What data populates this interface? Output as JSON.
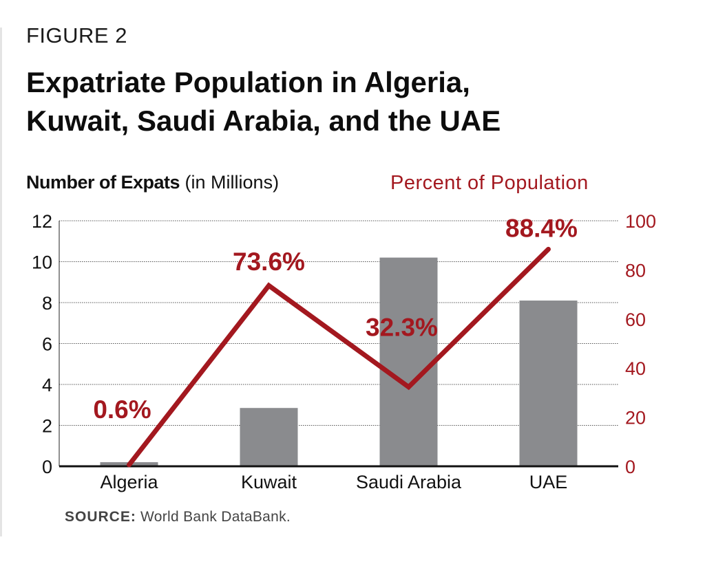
{
  "figure_label": "FIGURE 2",
  "title_line1": "Expatriate Population in Algeria,",
  "title_line2": "Kuwait, Saudi Arabia, and the UAE",
  "left_axis_title_bold": "Number of Expats",
  "left_axis_title_rest": " (in Millions)",
  "right_axis_title": "Percent of Population",
  "source_label": "SOURCE:",
  "source_text": " World Bank DataBank.",
  "colors": {
    "bar": "#8a8b8e",
    "line": "#a3181f",
    "grid": "#555555",
    "text": "#111111"
  },
  "chart_data": {
    "type": "bar",
    "categories": [
      "Algeria",
      "Kuwait",
      "Saudi Arabia",
      "UAE"
    ],
    "series": [
      {
        "type": "bar",
        "axis": "left",
        "values": [
          0.2,
          2.85,
          10.2,
          8.1
        ]
      },
      {
        "type": "line",
        "axis": "right",
        "values": [
          0.6,
          73.6,
          32.3,
          88.4
        ],
        "data_labels": [
          "0.6%",
          "73.6%",
          "32.3%",
          "88.4%"
        ]
      }
    ],
    "ylim_left": [
      0,
      12
    ],
    "yticks_left": [
      "0",
      "2",
      "4",
      "6",
      "8",
      "10",
      "12"
    ],
    "ylim_right": [
      0,
      100
    ],
    "yticks_right": [
      "0",
      "20",
      "40",
      "60",
      "80",
      "100"
    ],
    "ylabel_left": "Number of Expats (in Millions)",
    "ylabel_right": "Percent of Population",
    "grid": true,
    "legend": "none"
  }
}
